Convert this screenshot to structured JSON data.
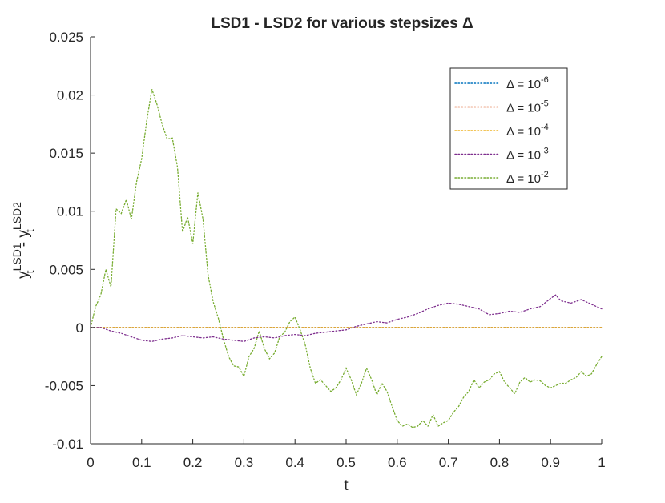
{
  "chart_data": {
    "type": "line",
    "title": "LSD1 - LSD2 for various stepsizes Δ",
    "xlabel": "t",
    "ylabel": {
      "base1": "y",
      "sub1": "t",
      "sup1": "LSD1",
      "sep": " - ",
      "base2": "y",
      "sub2": "t",
      "sup2": "LSD2"
    },
    "xlim": [
      0,
      1
    ],
    "ylim": [
      -0.01,
      0.025
    ],
    "xticks": [
      0,
      0.1,
      0.2,
      0.3,
      0.4,
      0.5,
      0.6,
      0.7,
      0.8,
      0.9,
      1
    ],
    "xtick_labels": [
      "0",
      "0.1",
      "0.2",
      "0.3",
      "0.4",
      "0.5",
      "0.6",
      "0.7",
      "0.8",
      "0.9",
      "1"
    ],
    "yticks": [
      -0.01,
      -0.005,
      0,
      0.005,
      0.01,
      0.015,
      0.02,
      0.025
    ],
    "ytick_labels": [
      "-0.01",
      "-0.005",
      "0",
      "0.005",
      "0.01",
      "0.015",
      "0.02",
      "0.025"
    ],
    "grid": false,
    "legend_position": "top-right",
    "series": [
      {
        "name": "Δ = 10^-6",
        "label_base": "Δ = 10",
        "label_exp": "-6",
        "color": "#0072BD",
        "x": [
          0,
          1
        ],
        "y": [
          0,
          0
        ]
      },
      {
        "name": "Δ = 10^-5",
        "label_base": "Δ = 10",
        "label_exp": "-5",
        "color": "#D95319",
        "x": [
          0,
          1
        ],
        "y": [
          0,
          0
        ]
      },
      {
        "name": "Δ = 10^-4",
        "label_base": "Δ = 10",
        "label_exp": "-4",
        "color": "#EDB120",
        "x": [
          0,
          1
        ],
        "y": [
          0,
          0
        ]
      },
      {
        "name": "Δ = 10^-3",
        "label_base": "Δ = 10",
        "label_exp": "-3",
        "color": "#7E2F8E",
        "x": [
          0,
          0.02,
          0.04,
          0.06,
          0.08,
          0.1,
          0.12,
          0.14,
          0.16,
          0.18,
          0.2,
          0.22,
          0.24,
          0.26,
          0.28,
          0.3,
          0.32,
          0.34,
          0.36,
          0.38,
          0.4,
          0.42,
          0.44,
          0.46,
          0.48,
          0.5,
          0.52,
          0.54,
          0.56,
          0.58,
          0.6,
          0.62,
          0.64,
          0.66,
          0.68,
          0.7,
          0.72,
          0.74,
          0.76,
          0.78,
          0.8,
          0.82,
          0.84,
          0.86,
          0.88,
          0.9,
          0.91,
          0.92,
          0.94,
          0.96,
          0.98,
          1.0
        ],
        "y": [
          0.0,
          0.0,
          -0.0003,
          -0.0005,
          -0.0008,
          -0.0011,
          -0.0012,
          -0.001,
          -0.0009,
          -0.0007,
          -0.0008,
          -0.0009,
          -0.0008,
          -0.001,
          -0.0011,
          -0.0012,
          -0.0009,
          -0.0008,
          -0.0009,
          -0.0007,
          -0.0006,
          -0.0007,
          -0.0005,
          -0.0004,
          -0.0003,
          -0.0002,
          0.0001,
          0.0003,
          0.0005,
          0.0004,
          0.0007,
          0.0009,
          0.0012,
          0.0016,
          0.0019,
          0.0021,
          0.002,
          0.0018,
          0.0016,
          0.0011,
          0.0012,
          0.0014,
          0.0013,
          0.0016,
          0.0018,
          0.0025,
          0.0028,
          0.0023,
          0.0021,
          0.0024,
          0.002,
          0.0016
        ]
      },
      {
        "name": "Δ = 10^-2",
        "label_base": "Δ = 10",
        "label_exp": "-2",
        "color": "#77AC30",
        "x": [
          0,
          0.01,
          0.02,
          0.03,
          0.04,
          0.05,
          0.06,
          0.07,
          0.08,
          0.09,
          0.1,
          0.11,
          0.12,
          0.13,
          0.14,
          0.15,
          0.16,
          0.17,
          0.18,
          0.19,
          0.2,
          0.21,
          0.22,
          0.23,
          0.24,
          0.25,
          0.26,
          0.27,
          0.28,
          0.29,
          0.3,
          0.31,
          0.32,
          0.33,
          0.34,
          0.35,
          0.36,
          0.37,
          0.38,
          0.39,
          0.4,
          0.41,
          0.42,
          0.43,
          0.44,
          0.45,
          0.46,
          0.47,
          0.48,
          0.49,
          0.5,
          0.51,
          0.52,
          0.53,
          0.54,
          0.55,
          0.56,
          0.57,
          0.58,
          0.59,
          0.6,
          0.61,
          0.62,
          0.63,
          0.64,
          0.65,
          0.66,
          0.67,
          0.68,
          0.69,
          0.7,
          0.71,
          0.72,
          0.73,
          0.74,
          0.75,
          0.76,
          0.77,
          0.78,
          0.79,
          0.8,
          0.81,
          0.82,
          0.83,
          0.84,
          0.85,
          0.86,
          0.87,
          0.88,
          0.89,
          0.9,
          0.91,
          0.92,
          0.93,
          0.94,
          0.95,
          0.96,
          0.97,
          0.98,
          0.99,
          1.0
        ],
        "y": [
          0.0,
          0.0018,
          0.0028,
          0.005,
          0.0035,
          0.0102,
          0.0098,
          0.011,
          0.0093,
          0.0125,
          0.0145,
          0.0178,
          0.0205,
          0.0192,
          0.0175,
          0.0162,
          0.0163,
          0.0138,
          0.0082,
          0.0095,
          0.0072,
          0.0116,
          0.0093,
          0.0045,
          0.0022,
          0.0008,
          -0.001,
          -0.0025,
          -0.0033,
          -0.0034,
          -0.0042,
          -0.0025,
          -0.0018,
          -0.0003,
          -0.0018,
          -0.0027,
          -0.0022,
          -0.0008,
          -0.0004,
          0.0005,
          0.0009,
          -0.0002,
          -0.0015,
          -0.0035,
          -0.0048,
          -0.0045,
          -0.005,
          -0.0055,
          -0.0052,
          -0.0045,
          -0.0035,
          -0.0045,
          -0.0058,
          -0.0048,
          -0.0035,
          -0.0045,
          -0.0058,
          -0.0048,
          -0.0055,
          -0.0068,
          -0.008,
          -0.0085,
          -0.0083,
          -0.0086,
          -0.0085,
          -0.008,
          -0.0085,
          -0.0075,
          -0.0085,
          -0.0082,
          -0.008,
          -0.0073,
          -0.0068,
          -0.006,
          -0.0055,
          -0.0045,
          -0.0052,
          -0.0047,
          -0.0045,
          -0.004,
          -0.0038,
          -0.0047,
          -0.0052,
          -0.0057,
          -0.0047,
          -0.0043,
          -0.0047,
          -0.0045,
          -0.0046,
          -0.005,
          -0.0052,
          -0.005,
          -0.0048,
          -0.0048,
          -0.0045,
          -0.0043,
          -0.0038,
          -0.0042,
          -0.004,
          -0.0032,
          -0.0025
        ]
      }
    ]
  }
}
